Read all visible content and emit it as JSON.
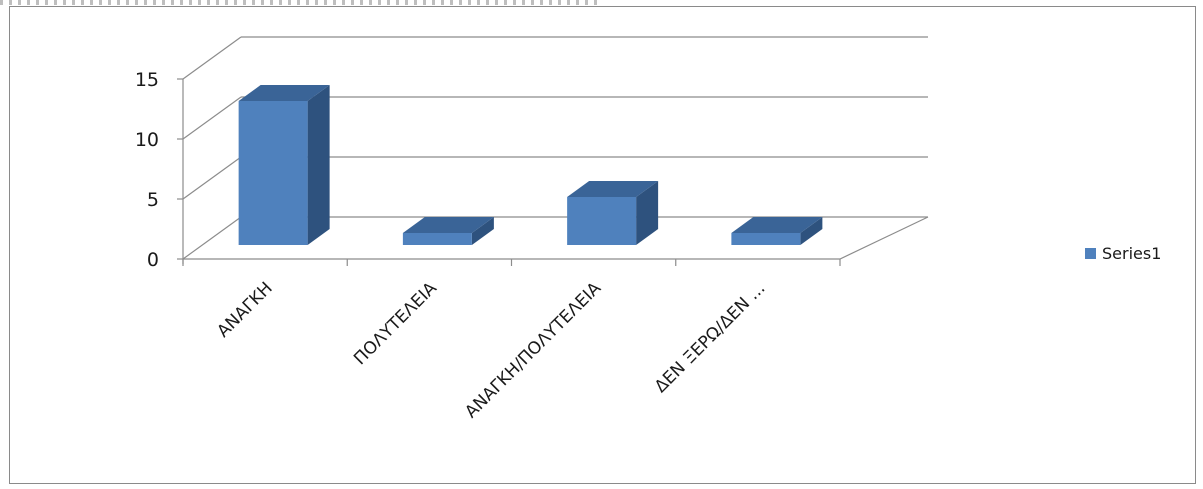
{
  "chart_data": {
    "type": "bar",
    "style": "3d-column",
    "categories": [
      "ΑΝΑΓΚΗ",
      "ΠΟΛΥΤΕΛΕΙΑ",
      "ΑΝΑΓΚΗ/ΠΟΛΥΤΕΛΕΙΑ",
      "ΔΕΝ ΞΕΡΩ/ΔΕΝ ..."
    ],
    "series": [
      {
        "name": "Series1",
        "values": [
          12,
          1,
          4,
          1
        ],
        "color": "#4F81BD"
      }
    ],
    "yticks": [
      "0",
      "5",
      "10",
      "15"
    ],
    "ylim": [
      0,
      15
    ],
    "grid": true,
    "legend": "right",
    "title": "",
    "xlabel": "",
    "ylabel": ""
  }
}
